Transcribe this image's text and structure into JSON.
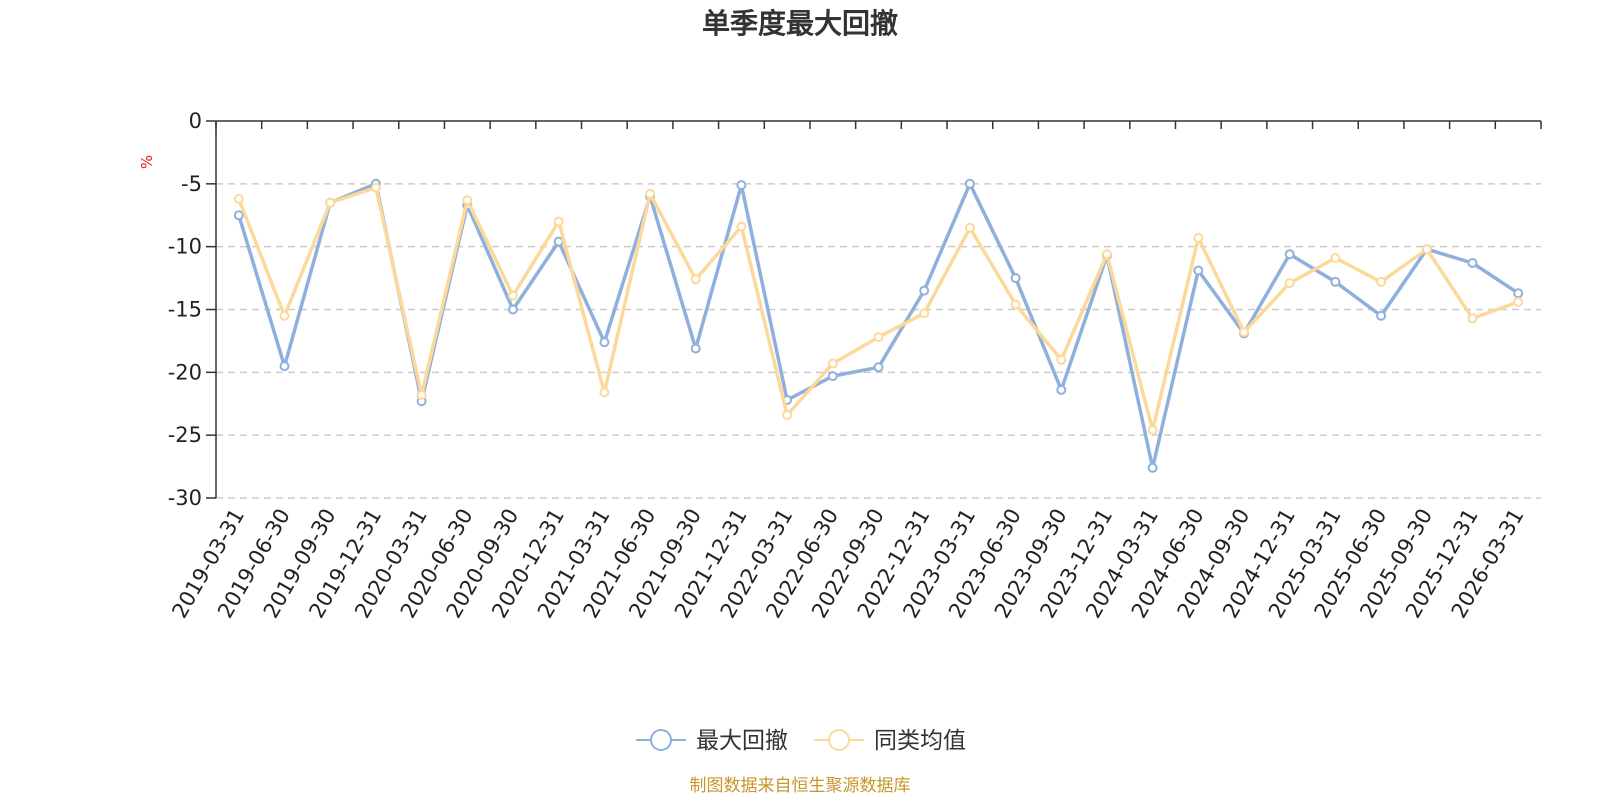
{
  "chart_data": {
    "type": "line",
    "title": "单季度最大回撤",
    "ylabel": "%",
    "ylim": [
      -30,
      0
    ],
    "yticks": [
      0,
      -5,
      -10,
      -15,
      -20,
      -25,
      -30
    ],
    "grid": true,
    "legend_position": "bottom",
    "categories": [
      "2019-03-31",
      "2019-06-30",
      "2019-09-30",
      "2019-12-31",
      "2020-03-31",
      "2020-06-30",
      "2020-09-30",
      "2020-12-31",
      "2021-03-31",
      "2021-06-30",
      "2021-09-30",
      "2021-12-31",
      "2022-03-31",
      "2022-06-30",
      "2022-09-30",
      "2022-12-31",
      "2023-03-31",
      "2023-06-30",
      "2023-09-30",
      "2023-12-31",
      "2024-03-31",
      "2024-06-30",
      "2024-09-30",
      "2024-12-31",
      "2025-03-31",
      "2025-06-30",
      "2025-09-30",
      "2025-12-31",
      "2026-03-31"
    ],
    "series": [
      {
        "name": "最大回撤",
        "color": "#8fb0dc",
        "values": [
          -7.5,
          -19.5,
          -6.5,
          -5.0,
          -22.3,
          -6.7,
          -15.0,
          -9.6,
          -17.6,
          -6.0,
          -18.1,
          -5.1,
          -22.2,
          -20.3,
          -19.6,
          -13.5,
          -5.0,
          -12.5,
          -21.4,
          -10.7,
          -27.6,
          -11.9,
          -16.9,
          -10.6,
          -12.8,
          -15.5,
          -10.2,
          -11.3,
          -13.7
        ]
      },
      {
        "name": "同类均值",
        "color": "#fcd99b",
        "values": [
          -6.2,
          -15.5,
          -6.5,
          -5.3,
          -21.8,
          -6.3,
          -13.9,
          -8.0,
          -21.6,
          -5.8,
          -12.6,
          -8.4,
          -23.4,
          -19.3,
          -17.2,
          -15.3,
          -8.5,
          -14.6,
          -19.0,
          -10.6,
          -24.6,
          -9.3,
          -16.8,
          -12.9,
          -10.9,
          -12.8,
          -10.2,
          -15.7,
          -14.4
        ]
      }
    ]
  },
  "source_note": "制图数据来自恒生聚源数据库"
}
